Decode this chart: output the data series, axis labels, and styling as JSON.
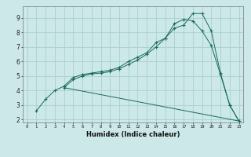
{
  "background_color": "#cce8e8",
  "grid_color": "#aad0d0",
  "line_color": "#1a6b5a",
  "xlabel": "Humidex (Indice chaleur)",
  "xlim": [
    -0.5,
    23.5
  ],
  "ylim": [
    1.8,
    9.8
  ],
  "yticks": [
    2,
    3,
    4,
    5,
    6,
    7,
    8,
    9
  ],
  "xticks": [
    0,
    1,
    2,
    3,
    4,
    5,
    6,
    7,
    8,
    9,
    10,
    11,
    12,
    13,
    14,
    15,
    16,
    17,
    18,
    19,
    20,
    21,
    22,
    23
  ],
  "line1_x": [
    1,
    2,
    3,
    4,
    5,
    6,
    7,
    8,
    9,
    10,
    11,
    12,
    13,
    14,
    15,
    16,
    17,
    18,
    19,
    20,
    21,
    22,
    23
  ],
  "line1_y": [
    2.6,
    3.4,
    4.0,
    4.3,
    4.9,
    5.1,
    5.2,
    5.3,
    5.4,
    5.6,
    6.0,
    6.3,
    6.6,
    7.3,
    7.6,
    8.3,
    8.5,
    9.3,
    9.3,
    8.1,
    5.2,
    3.0,
    1.9
  ],
  "line2_x": [
    4,
    5,
    6,
    7,
    8,
    9,
    10,
    11,
    12,
    13,
    14,
    15,
    16,
    17,
    18,
    19,
    20,
    21,
    22,
    23
  ],
  "line2_y": [
    4.2,
    4.75,
    5.0,
    5.15,
    5.2,
    5.3,
    5.5,
    5.8,
    6.1,
    6.5,
    7.0,
    7.6,
    8.6,
    8.9,
    8.8,
    8.1,
    7.1,
    5.1,
    3.0,
    1.9
  ],
  "line3_x": [
    4,
    23
  ],
  "line3_y": [
    4.2,
    1.9
  ]
}
